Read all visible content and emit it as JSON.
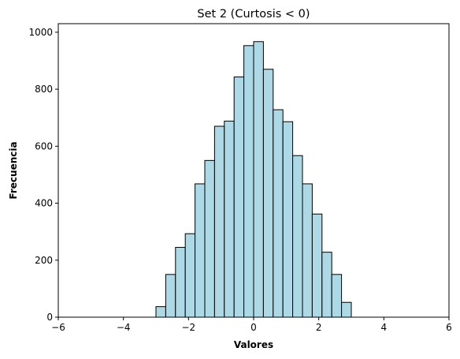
{
  "chart_data": {
    "type": "histogram",
    "title": "Set 2 (Curtosis < 0)",
    "xlabel": "Valores",
    "ylabel": "Frecuencia",
    "xlim": [
      -6,
      6
    ],
    "ylim": [
      0,
      1030
    ],
    "x_ticks": [
      -6,
      -4,
      -2,
      0,
      2,
      4,
      6
    ],
    "x_tick_labels": [
      "−6",
      "−4",
      "−2",
      "0",
      "2",
      "4",
      "6"
    ],
    "y_ticks": [
      0,
      200,
      400,
      600,
      800,
      1000
    ],
    "y_tick_labels": [
      "0",
      "200",
      "400",
      "600",
      "800",
      "1000"
    ],
    "grid": false,
    "bar_color": "#add8e6",
    "edge_color": "#000000",
    "bins": [
      {
        "x0": -3.0,
        "x1": -2.7,
        "count": 37
      },
      {
        "x0": -2.7,
        "x1": -2.4,
        "count": 150
      },
      {
        "x0": -2.4,
        "x1": -2.1,
        "count": 245
      },
      {
        "x0": -2.1,
        "x1": -1.8,
        "count": 293
      },
      {
        "x0": -1.8,
        "x1": -1.5,
        "count": 468
      },
      {
        "x0": -1.5,
        "x1": -1.2,
        "count": 550
      },
      {
        "x0": -1.2,
        "x1": -0.9,
        "count": 670
      },
      {
        "x0": -0.9,
        "x1": -0.6,
        "count": 688
      },
      {
        "x0": -0.6,
        "x1": -0.3,
        "count": 843
      },
      {
        "x0": -0.3,
        "x1": 0.0,
        "count": 953
      },
      {
        "x0": 0.0,
        "x1": 0.3,
        "count": 967
      },
      {
        "x0": 0.3,
        "x1": 0.6,
        "count": 870
      },
      {
        "x0": 0.6,
        "x1": 0.9,
        "count": 728
      },
      {
        "x0": 0.9,
        "x1": 1.2,
        "count": 686
      },
      {
        "x0": 1.2,
        "x1": 1.5,
        "count": 567
      },
      {
        "x0": 1.5,
        "x1": 1.8,
        "count": 468
      },
      {
        "x0": 1.8,
        "x1": 2.1,
        "count": 362
      },
      {
        "x0": 2.1,
        "x1": 2.4,
        "count": 228
      },
      {
        "x0": 2.4,
        "x1": 2.7,
        "count": 150
      },
      {
        "x0": 2.7,
        "x1": 3.0,
        "count": 52
      }
    ]
  }
}
